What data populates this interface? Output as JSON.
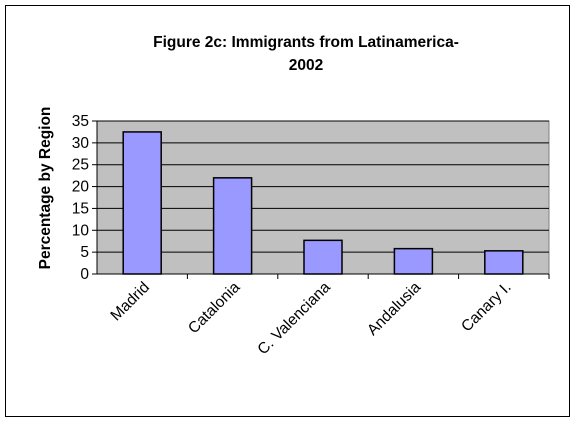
{
  "chart_data": {
    "type": "bar",
    "title_line1": "Figure 2c: Immigrants from Latinamerica-",
    "title_line2": "2002",
    "xlabel": "",
    "ylabel": "Percentage by Region",
    "categories": [
      "Madrid",
      "Catalonia",
      "C. Valenciana",
      "Andalusia",
      "Canary I."
    ],
    "values": [
      32.5,
      22,
      7.7,
      5.8,
      5.3
    ],
    "ylim": [
      0,
      35
    ],
    "yticks": [
      "0",
      "5",
      "10",
      "15",
      "20",
      "25",
      "30",
      "35"
    ],
    "grid": true,
    "legend": "none",
    "colors": {
      "bar_fill": "#9999ff",
      "bar_stroke": "#000000",
      "plot_background": "#c0c0c0",
      "gridline": "#000000"
    }
  }
}
